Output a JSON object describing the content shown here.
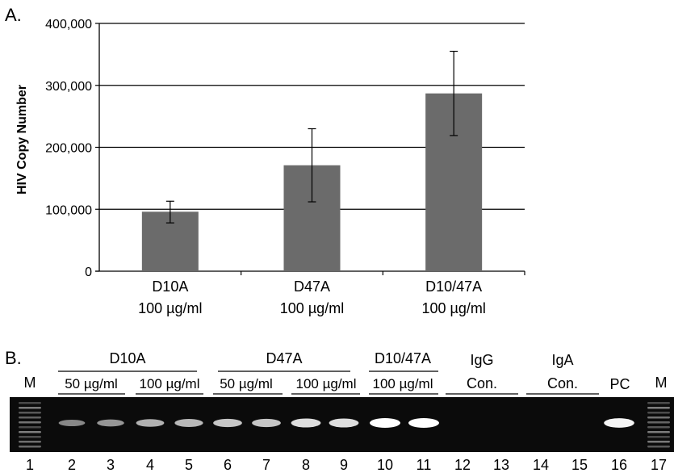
{
  "chart_data": {
    "type": "bar",
    "panel_label": "A.",
    "ylabel": "HIV Copy Number",
    "xlabel": "",
    "ylim": [
      0,
      400000
    ],
    "yticks": [
      "0",
      "100,000",
      "200,000",
      "300,000",
      "400,000"
    ],
    "ytick_values": [
      0,
      100000,
      200000,
      300000,
      400000
    ],
    "grid": true,
    "categories": [
      {
        "line1": "D10A",
        "line2": "100 µg/ml"
      },
      {
        "line1": "D47A",
        "line2": "100 µg/ml"
      },
      {
        "line1": "D10/47A",
        "line2": "100 µg/ml"
      }
    ],
    "values": [
      96000,
      171000,
      287000
    ],
    "error_low": [
      78000,
      112000,
      219000
    ],
    "error_high": [
      113000,
      230000,
      355000
    ],
    "bar_color": "#6b6b6b"
  },
  "gel": {
    "panel_label": "B.",
    "marker_label": "M",
    "group_labels": [
      {
        "name": "D10A",
        "subs": [
          "50 µg/ml",
          "100 µg/ml"
        ]
      },
      {
        "name": "D47A",
        "subs": [
          "50 µg/ml",
          "100 µg/ml"
        ]
      },
      {
        "name": "D10/47A",
        "subs": [
          "100 µg/ml"
        ]
      },
      {
        "name": "IgG",
        "subs": [
          "Con."
        ]
      },
      {
        "name": "IgA",
        "subs": [
          "Con."
        ]
      }
    ],
    "pc_label": "PC",
    "lane_numbers": [
      "1",
      "2",
      "3",
      "4",
      "5",
      "6",
      "7",
      "8",
      "9",
      "10",
      "11",
      "12",
      "13",
      "14",
      "15",
      "16",
      "17"
    ],
    "band_intensity": [
      0,
      0.35,
      0.45,
      0.6,
      0.65,
      0.72,
      0.72,
      0.85,
      0.85,
      1.0,
      1.0,
      0,
      0,
      0,
      0,
      0.95,
      0
    ]
  }
}
